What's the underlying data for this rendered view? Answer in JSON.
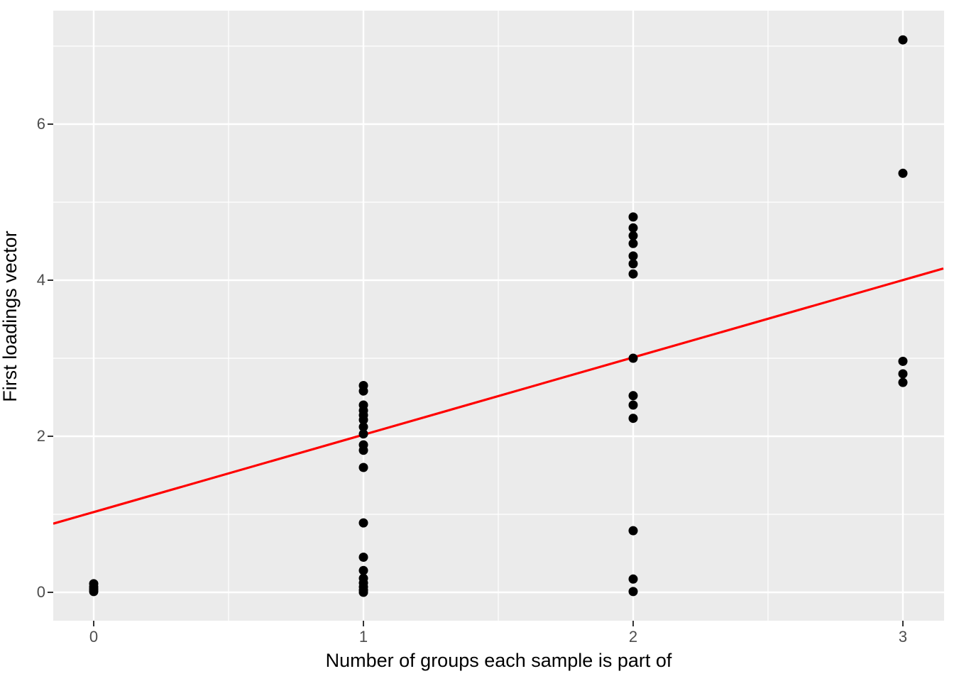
{
  "chart_data": {
    "type": "scatter",
    "title": "",
    "xlabel": "Number of groups each sample is part of",
    "ylabel": "First loadings vector",
    "x_ticks": [
      0,
      1,
      2,
      3
    ],
    "y_ticks": [
      0,
      2,
      4,
      6
    ],
    "x_minor_ticks": [
      0.5,
      1.5,
      2.5
    ],
    "y_minor_ticks": [
      1,
      3,
      5,
      7
    ],
    "xlim": [
      -0.15,
      3.15
    ],
    "ylim": [
      -0.36,
      7.46
    ],
    "grid": "white major and minor gridlines on grey panel",
    "legend_position": "none",
    "points": [
      {
        "x": 0,
        "y": 0.11
      },
      {
        "x": 0,
        "y": 0.07
      },
      {
        "x": 0,
        "y": 0.04
      },
      {
        "x": 0,
        "y": 0.01
      },
      {
        "x": 1,
        "y": 2.65
      },
      {
        "x": 1,
        "y": 2.58
      },
      {
        "x": 1,
        "y": 2.4
      },
      {
        "x": 1,
        "y": 2.33
      },
      {
        "x": 1,
        "y": 2.27
      },
      {
        "x": 1,
        "y": 2.21
      },
      {
        "x": 1,
        "y": 2.12
      },
      {
        "x": 1,
        "y": 2.03
      },
      {
        "x": 1,
        "y": 1.89
      },
      {
        "x": 1,
        "y": 1.82
      },
      {
        "x": 1,
        "y": 1.6
      },
      {
        "x": 1,
        "y": 0.89
      },
      {
        "x": 1,
        "y": 0.45
      },
      {
        "x": 1,
        "y": 0.28
      },
      {
        "x": 1,
        "y": 0.18
      },
      {
        "x": 1,
        "y": 0.12
      },
      {
        "x": 1,
        "y": 0.07
      },
      {
        "x": 1,
        "y": 0.03
      },
      {
        "x": 1,
        "y": 0.0
      },
      {
        "x": 2,
        "y": 4.81
      },
      {
        "x": 2,
        "y": 4.67
      },
      {
        "x": 2,
        "y": 4.57
      },
      {
        "x": 2,
        "y": 4.47
      },
      {
        "x": 2,
        "y": 4.31
      },
      {
        "x": 2,
        "y": 4.21
      },
      {
        "x": 2,
        "y": 4.08
      },
      {
        "x": 2,
        "y": 3.0
      },
      {
        "x": 2,
        "y": 2.52
      },
      {
        "x": 2,
        "y": 2.4
      },
      {
        "x": 2,
        "y": 2.23
      },
      {
        "x": 2,
        "y": 0.79
      },
      {
        "x": 2,
        "y": 0.17
      },
      {
        "x": 2,
        "y": 0.01
      },
      {
        "x": 3,
        "y": 7.08
      },
      {
        "x": 3,
        "y": 5.37
      },
      {
        "x": 3,
        "y": 2.96
      },
      {
        "x": 3,
        "y": 2.8
      },
      {
        "x": 3,
        "y": 2.69
      }
    ],
    "trend_line": {
      "type": "linear",
      "x1": -0.15,
      "y1": 0.88,
      "x2": 3.15,
      "y2": 4.15,
      "slope": 0.99,
      "intercept": 1.03
    },
    "colors": {
      "panel_background": "#EBEBEB",
      "gridline": "#FFFFFF",
      "point": "#000000",
      "trend_line": "#FF0000",
      "tick_label": "#4D4D4D",
      "tick_mark": "#333333",
      "axis_title": "#000000",
      "figure_background": "#FFFFFF"
    }
  }
}
